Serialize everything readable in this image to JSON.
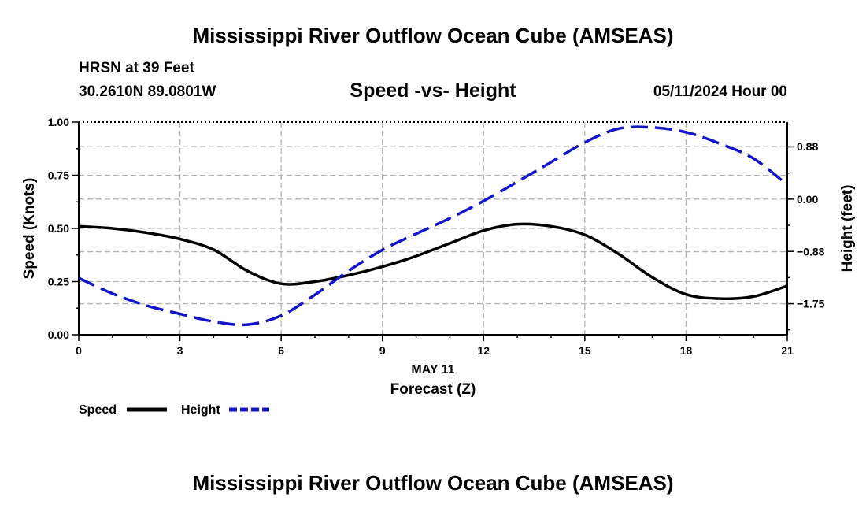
{
  "header": {
    "title": "Mississippi River Outflow Ocean Cube (AMSEAS)",
    "station": "HRSN at 39 Feet",
    "coords": "30.2610N  89.0801W",
    "subtitle": "Speed -vs- Height",
    "datetime": "05/11/2024 Hour 00"
  },
  "footer": {
    "title": "Mississippi River Outflow Ocean Cube (AMSEAS)"
  },
  "colors": {
    "speed": "#000000",
    "height": "#1515c8",
    "grid": "#b4b4b4"
  },
  "chart_data": {
    "type": "line",
    "title": "Speed -vs- Height",
    "xlabel": "Forecast (Z)",
    "xdate_label": "MAY 11",
    "xlim": [
      0,
      21
    ],
    "xticks": [
      0,
      3,
      6,
      9,
      12,
      15,
      18,
      21
    ],
    "xtick_labels": [
      "0",
      "3",
      "6",
      "9",
      "12",
      "15",
      "18",
      "21"
    ],
    "ylabel_left": "Speed (Knots)",
    "ylim_left": [
      0,
      1
    ],
    "yticks_left": [
      0,
      0.25,
      0.5,
      0.75,
      1.0
    ],
    "ytick_labels_left": [
      "0.00",
      "0.25",
      "0.50",
      "0.75",
      "1.00"
    ],
    "ylabel_right": "Height (feet)",
    "ylim_right": [
      -2.27,
      1.29
    ],
    "yticks_right": [
      0.88,
      0.0,
      -0.88,
      -1.75
    ],
    "ytick_labels_right": [
      "0.88",
      "0.00",
      "−0.88",
      "−1.75"
    ],
    "grid": true,
    "legend": [
      {
        "name": "Speed",
        "style": "solid"
      },
      {
        "name": "Height",
        "style": "dashed"
      }
    ],
    "series": [
      {
        "name": "Speed",
        "axis": "left",
        "style": "solid",
        "x": [
          0,
          1,
          2,
          3,
          4,
          5,
          6,
          7,
          8,
          9,
          10,
          11,
          12,
          13,
          14,
          15,
          16,
          17,
          18,
          19,
          20,
          21
        ],
        "values": [
          0.51,
          0.5,
          0.48,
          0.45,
          0.4,
          0.3,
          0.24,
          0.25,
          0.28,
          0.32,
          0.37,
          0.43,
          0.49,
          0.52,
          0.51,
          0.47,
          0.38,
          0.27,
          0.19,
          0.17,
          0.18,
          0.23
        ]
      },
      {
        "name": "Height",
        "axis": "right",
        "style": "dashed",
        "x": [
          0,
          1,
          2,
          3,
          4,
          5,
          6,
          7,
          8,
          9,
          10,
          11,
          12,
          13,
          14,
          15,
          16,
          17,
          18,
          19,
          20,
          21
        ],
        "values": [
          -1.32,
          -1.58,
          -1.78,
          -1.92,
          -2.05,
          -2.1,
          -1.95,
          -1.6,
          -1.2,
          -0.85,
          -0.58,
          -0.32,
          -0.03,
          0.29,
          0.62,
          0.95,
          1.18,
          1.2,
          1.12,
          0.93,
          0.68,
          0.24
        ]
      }
    ]
  }
}
